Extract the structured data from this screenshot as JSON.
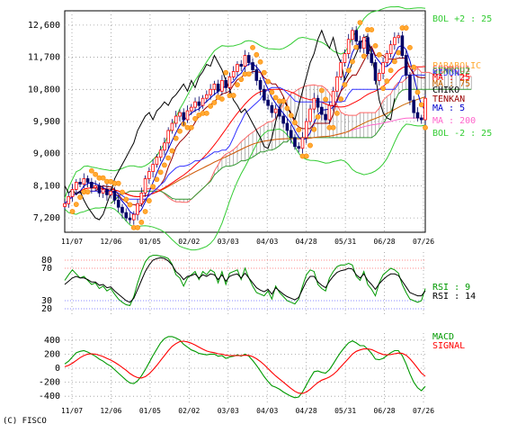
{
  "chart_data": [
    {
      "type": "candlestick",
      "title": "",
      "x_tick_labels": [
        "11/07",
        "12/06",
        "01/05",
        "02/02",
        "03/03",
        "04/03",
        "04/28",
        "05/31",
        "06/28",
        "07/26"
      ],
      "y_tick_labels": [
        "12,600",
        "11,700",
        "10,800",
        "9,900",
        "9,000",
        "8,100",
        "7,200"
      ],
      "y_ticks": [
        12600,
        11700,
        10800,
        9900,
        9000,
        8100,
        7200
      ],
      "ylim": [
        6800,
        13000
      ],
      "grid": true,
      "legend_placement": "right",
      "legend_labels": [
        "BOL +2 : 25",
        "PARABOLIC",
        "BOL +2 : 25",
        "BOL -2 : 25",
        "SENKOU1",
        "SENKOU2",
        "CHIKO",
        "TENKAN",
        "KIJUN",
        "MA : 25",
        "MA : 75",
        "MA : 5",
        "MA : 200",
        "BOL -2 : 25"
      ],
      "close": [
        7600,
        7800,
        8000,
        8200,
        8150,
        8300,
        8200,
        8050,
        8100,
        7900,
        8000,
        7850,
        7950,
        7700,
        7500,
        7350,
        7200,
        7150,
        7300,
        7600,
        7900,
        8300,
        8500,
        8700,
        8900,
        9100,
        9300,
        9650,
        9850,
        10050,
        10150,
        9950,
        10200,
        10300,
        10450,
        10350,
        10550,
        10650,
        10800,
        10950,
        10750,
        11050,
        10850,
        11150,
        11300,
        11500,
        11450,
        11750,
        11550,
        11350,
        11050,
        10800,
        10500,
        10350,
        10150,
        10250,
        10050,
        9850,
        9650,
        9450,
        9200,
        9150,
        9450,
        9900,
        10250,
        10550,
        10300,
        10100,
        9950,
        10350,
        10750,
        11150,
        11550,
        11800,
        12200,
        12450,
        12150,
        11950,
        12250,
        11800,
        11550,
        11050,
        11250,
        11550,
        11800,
        12050,
        12250,
        12300,
        11750,
        11200,
        10500,
        10150,
        10000,
        9950,
        10550
      ]
    },
    {
      "type": "line",
      "title": "",
      "y_tick_labels": [
        "80",
        "70",
        "30",
        "20"
      ],
      "y_ticks": [
        80,
        70,
        30,
        20
      ],
      "ylim": [
        10,
        90
      ],
      "series": [
        {
          "name": "RSI : 9",
          "color": "#009900",
          "values": [
            55,
            62,
            68,
            63,
            58,
            60,
            55,
            50,
            52,
            45,
            48,
            42,
            45,
            38,
            32,
            28,
            25,
            24,
            35,
            52,
            66,
            78,
            84,
            86,
            86,
            85,
            84,
            82,
            75,
            62,
            58,
            48,
            58,
            62,
            66,
            56,
            66,
            62,
            68,
            65,
            52,
            66,
            50,
            64,
            66,
            68,
            56,
            70,
            58,
            48,
            40,
            38,
            36,
            42,
            32,
            48,
            40,
            35,
            30,
            28,
            26,
            32,
            48,
            62,
            68,
            66,
            50,
            45,
            42,
            58,
            66,
            72,
            74,
            74,
            76,
            74,
            60,
            55,
            66,
            50,
            44,
            36,
            52,
            62,
            66,
            70,
            68,
            64,
            50,
            40,
            32,
            30,
            28,
            30,
            45
          ]
        },
        {
          "name": "RSI : 14",
          "color": "#000000",
          "values": [
            50,
            54,
            58,
            60,
            58,
            58,
            56,
            53,
            53,
            49,
            50,
            46,
            47,
            42,
            38,
            34,
            30,
            28,
            33,
            44,
            55,
            66,
            74,
            80,
            82,
            83,
            82,
            79,
            74,
            66,
            62,
            56,
            60,
            61,
            63,
            58,
            62,
            60,
            63,
            62,
            56,
            62,
            54,
            60,
            62,
            63,
            58,
            64,
            58,
            52,
            46,
            43,
            41,
            44,
            38,
            46,
            42,
            38,
            35,
            33,
            31,
            34,
            44,
            54,
            60,
            60,
            53,
            49,
            46,
            54,
            60,
            65,
            67,
            68,
            70,
            69,
            62,
            58,
            63,
            55,
            50,
            44,
            51,
            56,
            60,
            63,
            63,
            61,
            54,
            47,
            40,
            38,
            36,
            36,
            42
          ]
        }
      ]
    },
    {
      "type": "line",
      "title": "",
      "y_tick_labels": [
        "400",
        "200",
        "0",
        "-200",
        "-400"
      ],
      "y_ticks": [
        400,
        200,
        0,
        -200,
        -400
      ],
      "ylim": [
        -500,
        500
      ],
      "series": [
        {
          "name": "MACD",
          "color": "#009900",
          "values": [
            60,
            100,
            160,
            220,
            240,
            250,
            230,
            200,
            170,
            130,
            100,
            60,
            30,
            -20,
            -70,
            -120,
            -170,
            -210,
            -220,
            -180,
            -110,
            -20,
            80,
            180,
            270,
            360,
            420,
            450,
            450,
            430,
            400,
            340,
            300,
            260,
            240,
            210,
            200,
            190,
            200,
            200,
            170,
            180,
            140,
            160,
            170,
            190,
            170,
            200,
            170,
            110,
            40,
            -40,
            -120,
            -190,
            -250,
            -270,
            -300,
            -340,
            -370,
            -400,
            -420,
            -410,
            -340,
            -240,
            -140,
            -50,
            -40,
            -60,
            -70,
            -20,
            60,
            150,
            230,
            300,
            360,
            390,
            360,
            320,
            320,
            270,
            210,
            130,
            120,
            140,
            180,
            220,
            250,
            250,
            180,
            60,
            -80,
            -200,
            -280,
            -320,
            -260
          ]
        },
        {
          "name": "SIGNAL",
          "color": "#ff0000",
          "values": [
            20,
            40,
            70,
            110,
            150,
            180,
            200,
            205,
            200,
            185,
            165,
            140,
            115,
            85,
            50,
            10,
            -30,
            -75,
            -110,
            -135,
            -140,
            -120,
            -80,
            -25,
            40,
            110,
            180,
            250,
            310,
            350,
            380,
            385,
            375,
            355,
            330,
            300,
            270,
            245,
            230,
            220,
            205,
            200,
            185,
            180,
            178,
            180,
            180,
            185,
            182,
            165,
            135,
            95,
            50,
            -5,
            -60,
            -110,
            -155,
            -200,
            -245,
            -290,
            -330,
            -355,
            -360,
            -340,
            -300,
            -250,
            -205,
            -170,
            -150,
            -125,
            -90,
            -40,
            20,
            80,
            140,
            200,
            240,
            260,
            275,
            275,
            265,
            240,
            215,
            195,
            190,
            195,
            205,
            215,
            210,
            185,
            135,
            70,
            0,
            -70,
            -115
          ]
        }
      ]
    }
  ],
  "copyright": "(C) FISCO"
}
